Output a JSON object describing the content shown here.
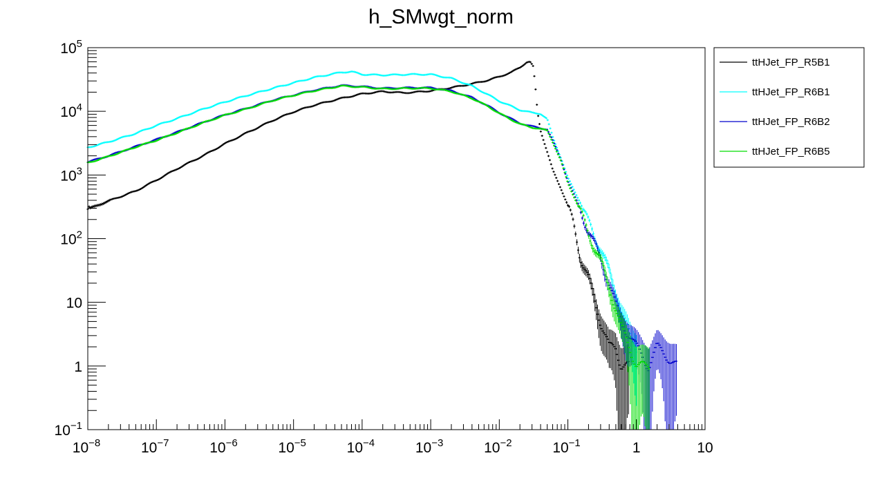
{
  "chart_data": {
    "type": "scatter",
    "title": "h_SMwgt_norm",
    "xlabel": "",
    "ylabel": "",
    "xscale": "log",
    "yscale": "log",
    "xlim": [
      1e-08,
      10
    ],
    "ylim": [
      0.1,
      100000
    ],
    "grid": false,
    "legend_position": "right",
    "x_tick_labels": [
      {
        "value": 1e-08,
        "base": "10",
        "exp": "−8"
      },
      {
        "value": 1e-07,
        "base": "10",
        "exp": "−7"
      },
      {
        "value": 1e-06,
        "base": "10",
        "exp": "−6"
      },
      {
        "value": 1e-05,
        "base": "10",
        "exp": "−5"
      },
      {
        "value": 0.0001,
        "base": "10",
        "exp": "−4"
      },
      {
        "value": 0.001,
        "base": "10",
        "exp": "−3"
      },
      {
        "value": 0.01,
        "base": "10",
        "exp": "−2"
      },
      {
        "value": 0.1,
        "base": "10",
        "exp": "−1"
      },
      {
        "value": 1,
        "base": "1",
        "exp": ""
      },
      {
        "value": 10,
        "base": "10",
        "exp": ""
      }
    ],
    "y_tick_labels": [
      {
        "value": 0.1,
        "base": "10",
        "exp": "−1"
      },
      {
        "value": 1,
        "base": "1",
        "exp": ""
      },
      {
        "value": 10,
        "base": "10",
        "exp": ""
      },
      {
        "value": 100,
        "base": "10",
        "exp": "2"
      },
      {
        "value": 1000,
        "base": "10",
        "exp": "3"
      },
      {
        "value": 10000,
        "base": "10",
        "exp": "4"
      },
      {
        "value": 100000,
        "base": "10",
        "exp": "5"
      }
    ],
    "series": [
      {
        "name": "ttHJet_FP_R5B1",
        "color": "#000000",
        "points": [
          [
            1e-08,
            290
          ],
          [
            2e-08,
            390
          ],
          [
            5e-08,
            560
          ],
          [
            1e-07,
            830
          ],
          [
            2e-07,
            1250
          ],
          [
            5e-07,
            2050
          ],
          [
            1e-06,
            3100
          ],
          [
            2e-06,
            4500
          ],
          [
            5e-06,
            7200
          ],
          [
            1e-05,
            9800
          ],
          [
            2e-05,
            12500
          ],
          [
            5e-05,
            16000
          ],
          [
            0.0001,
            18800
          ],
          [
            0.0002,
            20500
          ],
          [
            0.0004,
            19500
          ],
          [
            0.0006,
            20000
          ],
          [
            0.001,
            21000
          ],
          [
            0.002,
            23500
          ],
          [
            0.004,
            27000
          ],
          [
            0.007,
            31000
          ],
          [
            0.01,
            35000
          ],
          [
            0.015,
            41000
          ],
          [
            0.02,
            49000
          ],
          [
            0.025,
            59000
          ],
          [
            0.028,
            60000
          ],
          [
            0.031,
            51000
          ],
          [
            0.033,
            30000
          ],
          [
            0.036,
            10000
          ],
          [
            0.04,
            5000
          ],
          [
            0.05,
            2300
          ],
          [
            0.06,
            1200
          ],
          [
            0.08,
            600
          ],
          [
            0.1,
            330
          ],
          [
            0.12,
            170
          ],
          [
            0.15,
            55
          ],
          [
            0.2,
            24
          ],
          [
            0.25,
            10
          ],
          [
            0.3,
            5
          ],
          [
            0.4,
            2
          ],
          [
            0.5,
            2
          ],
          [
            0.6,
            1
          ],
          [
            0.8,
            1
          ]
        ]
      },
      {
        "name": "ttHJet_FP_R6B1",
        "color": "#00ffff",
        "points": [
          [
            1e-08,
            2700
          ],
          [
            2e-08,
            3300
          ],
          [
            5e-08,
            4500
          ],
          [
            1e-07,
            6000
          ],
          [
            2e-07,
            7700
          ],
          [
            5e-07,
            11000
          ],
          [
            1e-06,
            14000
          ],
          [
            2e-06,
            17500
          ],
          [
            5e-06,
            23000
          ],
          [
            1e-05,
            28000
          ],
          [
            2e-05,
            34000
          ],
          [
            5e-05,
            41000
          ],
          [
            7e-05,
            42000
          ],
          [
            0.0001,
            38000
          ],
          [
            0.0002,
            37000
          ],
          [
            0.0005,
            38000
          ],
          [
            0.001,
            38000
          ],
          [
            0.002,
            33000
          ],
          [
            0.004,
            25000
          ],
          [
            0.007,
            18000
          ],
          [
            0.01,
            14500
          ],
          [
            0.015,
            12000
          ],
          [
            0.02,
            10500
          ],
          [
            0.03,
            9500
          ],
          [
            0.04,
            9200
          ],
          [
            0.05,
            7500
          ],
          [
            0.06,
            4000
          ],
          [
            0.08,
            1800
          ],
          [
            0.1,
            900
          ],
          [
            0.15,
            380
          ],
          [
            0.2,
            180
          ],
          [
            0.3,
            70
          ],
          [
            0.4,
            30
          ],
          [
            0.5,
            14
          ],
          [
            0.6,
            7
          ],
          [
            0.8,
            3
          ],
          [
            1,
            2
          ]
        ]
      },
      {
        "name": "ttHJet_FP_R6B2",
        "color": "#0000cc",
        "points": [
          [
            1e-08,
            1600
          ],
          [
            2e-08,
            2000
          ],
          [
            5e-08,
            2800
          ],
          [
            1e-07,
            3600
          ],
          [
            2e-07,
            4700
          ],
          [
            5e-07,
            6800
          ],
          [
            1e-06,
            8800
          ],
          [
            2e-06,
            11000
          ],
          [
            5e-06,
            15000
          ],
          [
            1e-05,
            18000
          ],
          [
            2e-05,
            21500
          ],
          [
            5e-05,
            25500
          ],
          [
            0.0001,
            24500
          ],
          [
            0.0002,
            23000
          ],
          [
            0.0005,
            23500
          ],
          [
            0.001,
            23500
          ],
          [
            0.002,
            21000
          ],
          [
            0.004,
            16500
          ],
          [
            0.007,
            12000
          ],
          [
            0.01,
            9500
          ],
          [
            0.015,
            7600
          ],
          [
            0.02,
            6500
          ],
          [
            0.03,
            5800
          ],
          [
            0.05,
            5200
          ],
          [
            0.06,
            3500
          ],
          [
            0.08,
            1700
          ],
          [
            0.1,
            800
          ],
          [
            0.15,
            300
          ],
          [
            0.2,
            130
          ],
          [
            0.3,
            50
          ],
          [
            0.4,
            20
          ],
          [
            0.5,
            9
          ],
          [
            0.6,
            5
          ],
          [
            0.8,
            3
          ],
          [
            1,
            2
          ],
          [
            1.5,
            1
          ],
          [
            2,
            2
          ],
          [
            4,
            1
          ]
        ]
      },
      {
        "name": "ttHJet_FP_R6B5",
        "color": "#00dd00",
        "points": [
          [
            1e-08,
            1550
          ],
          [
            2e-08,
            1950
          ],
          [
            5e-08,
            2750
          ],
          [
            1e-07,
            3500
          ],
          [
            2e-07,
            4600
          ],
          [
            5e-07,
            6700
          ],
          [
            1e-06,
            8700
          ],
          [
            2e-06,
            10800
          ],
          [
            5e-06,
            14800
          ],
          [
            1e-05,
            17800
          ],
          [
            2e-05,
            21000
          ],
          [
            5e-05,
            25000
          ],
          [
            0.0001,
            24000
          ],
          [
            0.0002,
            22500
          ],
          [
            0.0005,
            23000
          ],
          [
            0.001,
            23000
          ],
          [
            0.002,
            20500
          ],
          [
            0.004,
            16000
          ],
          [
            0.007,
            11800
          ],
          [
            0.01,
            9300
          ],
          [
            0.015,
            7400
          ],
          [
            0.02,
            6300
          ],
          [
            0.03,
            5600
          ],
          [
            0.05,
            5000
          ],
          [
            0.06,
            3300
          ],
          [
            0.08,
            1600
          ],
          [
            0.1,
            750
          ],
          [
            0.15,
            280
          ],
          [
            0.2,
            120
          ],
          [
            0.3,
            45
          ],
          [
            0.4,
            17
          ],
          [
            0.5,
            8
          ],
          [
            0.6,
            4
          ],
          [
            0.8,
            2
          ],
          [
            1,
            1
          ],
          [
            1.3,
            1
          ],
          [
            1.6,
            1
          ]
        ]
      }
    ]
  }
}
